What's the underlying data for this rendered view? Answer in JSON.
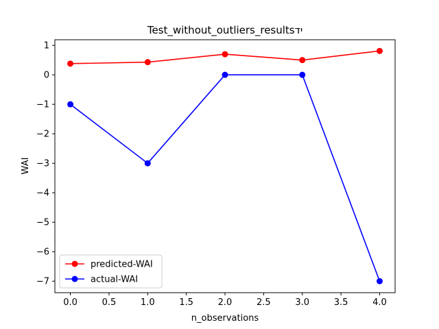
{
  "chart_data": {
    "type": "line",
    "title": "Test_without_outliers_resultsיד",
    "xlabel": "n_observations",
    "ylabel": "WAI",
    "x": [
      0,
      1,
      2,
      3,
      4
    ],
    "xlim": [
      -0.2,
      4.2
    ],
    "ylim": [
      -7.39,
      1.19
    ],
    "xticks": [
      0.0,
      0.5,
      1.0,
      1.5,
      2.0,
      2.5,
      3.0,
      3.5,
      4.0
    ],
    "xtick_labels": [
      "0.0",
      "0.5",
      "1.0",
      "1.5",
      "2.0",
      "2.5",
      "3.0",
      "3.5",
      "4.0"
    ],
    "yticks": [
      1,
      0,
      -1,
      -2,
      -3,
      -4,
      -5,
      -6,
      -7
    ],
    "ytick_labels": [
      "1",
      "0",
      "−1",
      "−2",
      "−3",
      "−4",
      "−5",
      "−6",
      "−7"
    ],
    "grid": false,
    "legend_position": "lower-left",
    "series": [
      {
        "name": "predicted-WAI",
        "color": "#ff0000",
        "marker": "circle",
        "values": [
          0.38,
          0.43,
          0.7,
          0.5,
          0.81
        ]
      },
      {
        "name": "actual-WAI",
        "color": "#0000ff",
        "marker": "circle",
        "values": [
          -1,
          -3,
          0,
          0,
          -7
        ]
      }
    ]
  }
}
